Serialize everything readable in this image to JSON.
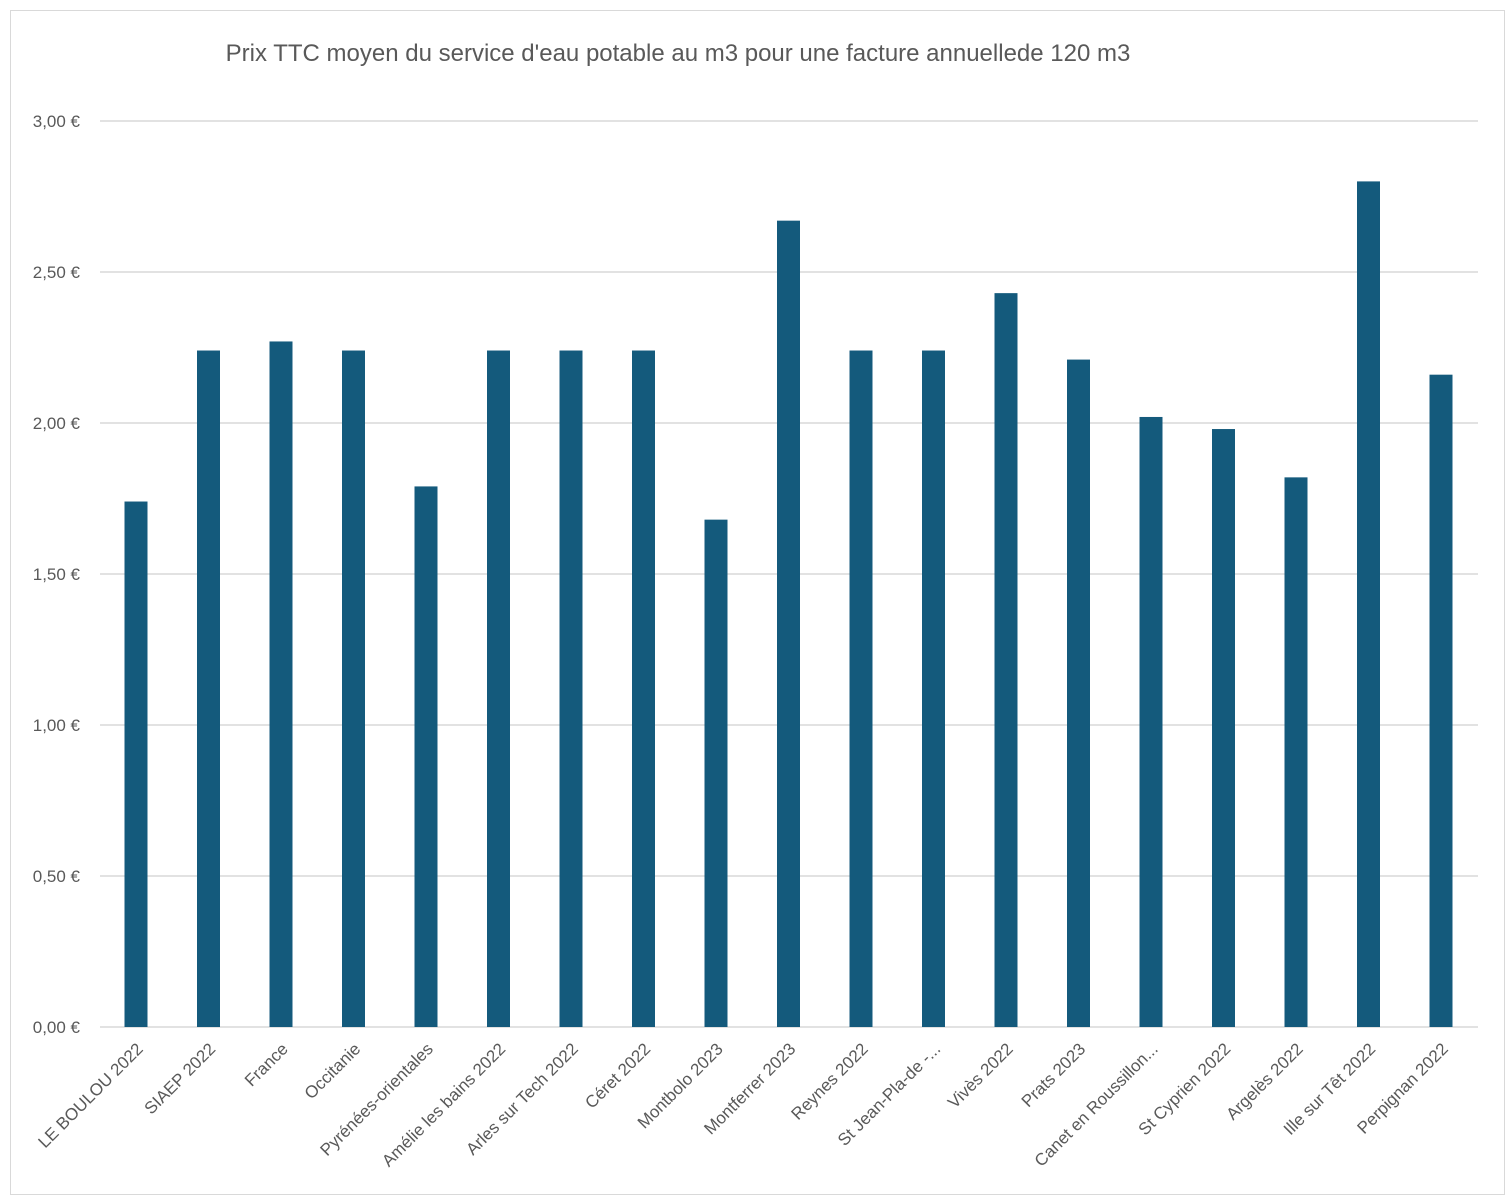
{
  "chart_data": {
    "type": "bar",
    "title": "Prix TTC moyen du service d'eau potable au m3 pour une facture annuellede 120 m3",
    "xlabel": "",
    "ylabel": "",
    "ylim": [
      0,
      3
    ],
    "y_ticks": [
      0,
      0.5,
      1,
      1.5,
      2,
      2.5,
      3
    ],
    "y_tick_labels": [
      "0,00 €",
      "0,50 €",
      "1,00 €",
      "1,50 €",
      "2,00 €",
      "2,50 €",
      "3,00 €"
    ],
    "grid": true,
    "legend": "none",
    "bar_color": "#145a7c",
    "categories": [
      "LE BOULOU 2022",
      "SIAEP 2022",
      "France",
      "Occitanie",
      "Pyrénées-orientales",
      "Amélie les bains 2022",
      "Arles sur Tech 2022",
      "Céret 2022",
      "Montbolo 2023",
      "Montferrer 2023",
      "Reynes 2022",
      "St Jean-Pla-de -...",
      "Vivès 2022",
      "Prats 2023",
      "Canet en Roussillon...",
      "St Cyprien 2022",
      "Argelès 2022",
      "Ille sur Têt 2022",
      "Perpignan 2022"
    ],
    "values": [
      1.74,
      2.24,
      2.27,
      2.24,
      1.79,
      2.24,
      2.24,
      2.24,
      1.68,
      2.67,
      2.24,
      2.24,
      2.43,
      2.21,
      2.02,
      1.98,
      1.82,
      2.8,
      2.16
    ]
  }
}
